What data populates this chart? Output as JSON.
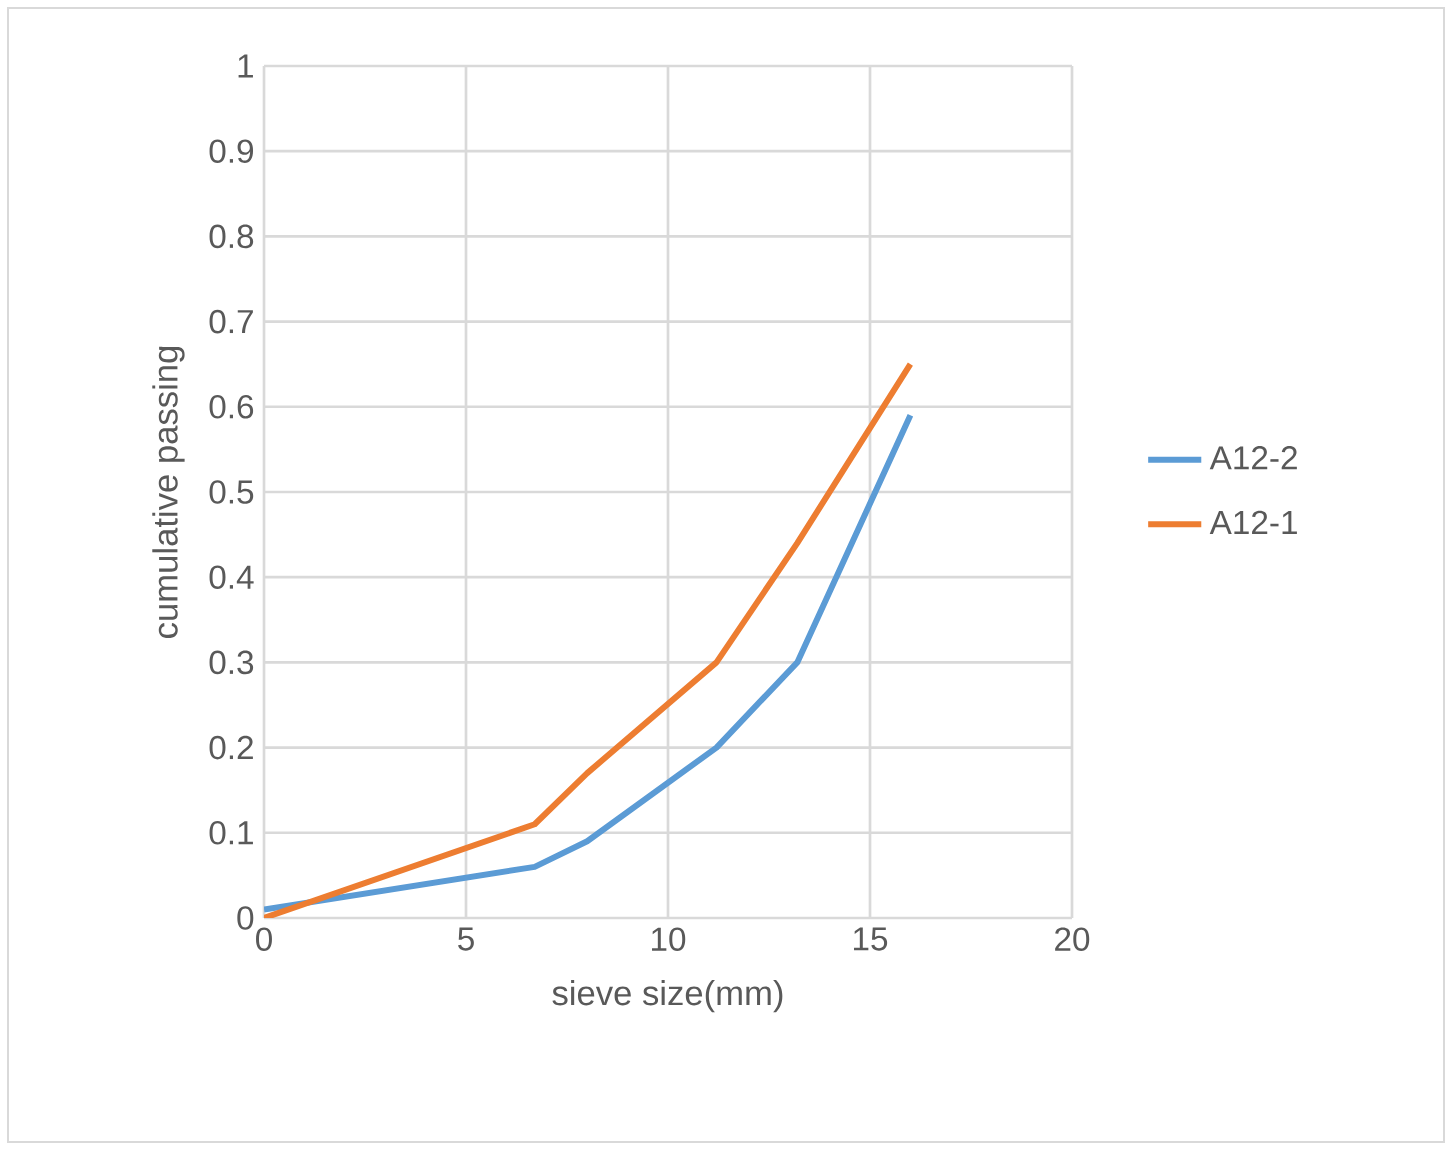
{
  "chart_data": {
    "type": "line",
    "xlabel": "sieve size(mm)",
    "ylabel": "cumulative passing",
    "series": [
      {
        "name": "A12-2",
        "color": "#5b9bd5",
        "x": [
          0,
          6.7,
          8,
          11.2,
          13.2,
          16
        ],
        "values": [
          0.01,
          0.06,
          0.09,
          0.2,
          0.3,
          0.59
        ]
      },
      {
        "name": "A12-1",
        "color": "#ed7d31",
        "x": [
          0,
          6.7,
          8,
          11.2,
          13.2,
          16
        ],
        "values": [
          0,
          0.11,
          0.17,
          0.3,
          0.44,
          0.65
        ]
      }
    ],
    "xlim": [
      0,
      20
    ],
    "xticks": [
      0,
      5,
      10,
      15,
      20
    ],
    "ylim": [
      0,
      1
    ],
    "yticks": [
      0,
      0.1,
      0.2,
      0.3,
      0.4,
      0.5,
      0.6,
      0.7,
      0.8,
      0.9,
      1
    ],
    "grid": true,
    "legend": "right",
    "marker": "none",
    "line_style": "solid"
  }
}
